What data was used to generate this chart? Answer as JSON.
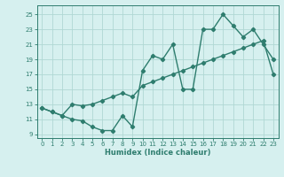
{
  "line1_x": [
    0,
    1,
    2,
    3,
    4,
    5,
    6,
    7,
    8,
    9,
    10,
    11,
    12,
    13,
    14,
    15,
    16,
    17,
    18,
    19,
    20,
    21,
    22,
    23
  ],
  "line1_y": [
    12.5,
    12.0,
    11.5,
    11.0,
    10.8,
    10.0,
    9.5,
    9.5,
    11.5,
    10.0,
    17.5,
    19.5,
    19.0,
    21.0,
    15.0,
    15.0,
    23.0,
    23.0,
    25.0,
    23.5,
    22.0,
    23.0,
    21.0,
    19.0
  ],
  "line2_x": [
    0,
    1,
    2,
    3,
    4,
    5,
    6,
    7,
    8,
    9,
    10,
    11,
    12,
    13,
    14,
    15,
    16,
    17,
    18,
    19,
    20,
    21,
    22,
    23
  ],
  "line2_y": [
    12.5,
    12.0,
    11.5,
    13.0,
    12.8,
    13.0,
    13.5,
    14.0,
    14.5,
    14.0,
    15.5,
    16.0,
    16.5,
    17.0,
    17.5,
    18.0,
    18.5,
    19.0,
    19.5,
    20.0,
    20.5,
    21.0,
    21.5,
    17.0
  ],
  "color": "#2e7d6e",
  "background": "#d6f0ef",
  "grid_color": "#b0d8d4",
  "xlabel": "Humidex (Indice chaleur)",
  "xlim": [
    -0.5,
    23.5
  ],
  "ylim": [
    8.5,
    26.2
  ],
  "yticks": [
    9,
    11,
    13,
    15,
    17,
    19,
    21,
    23,
    25
  ],
  "xticks": [
    0,
    1,
    2,
    3,
    4,
    5,
    6,
    7,
    8,
    9,
    10,
    11,
    12,
    13,
    14,
    15,
    16,
    17,
    18,
    19,
    20,
    21,
    22,
    23
  ],
  "marker": "D",
  "markersize": 2.2,
  "linewidth": 1.0,
  "tick_fontsize": 5.0,
  "xlabel_fontsize": 6.0
}
